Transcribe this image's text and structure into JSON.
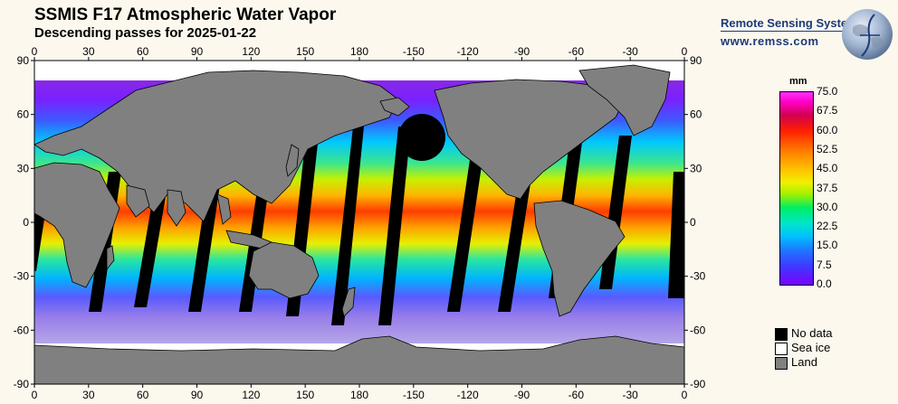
{
  "header": {
    "title": "SSMIS F17 Atmospheric Water Vapor",
    "subtitle": "Descending passes for 2025-01-22"
  },
  "brand": {
    "name": "Remote Sensing Systems",
    "url": "www.remss.com"
  },
  "map": {
    "x_ticks_top": [
      "0",
      "30",
      "60",
      "90",
      "120",
      "150",
      "180",
      "-150",
      "-120",
      "-90",
      "-60",
      "-30",
      "0"
    ],
    "x_ticks_bottom": [
      "0",
      "30",
      "60",
      "90",
      "120",
      "150",
      "180",
      "-150",
      "-120",
      "-90",
      "-60",
      "-30",
      "0"
    ],
    "y_ticks_left": [
      "90",
      "60",
      "30",
      "0",
      "-30",
      "-60",
      "-90"
    ],
    "y_ticks_right": [
      "90",
      "60",
      "30",
      "0",
      "-30",
      "-60",
      "-90"
    ],
    "colors": {
      "land": "#808080",
      "no_data": "#000000",
      "sea_ice": "#ffffff"
    }
  },
  "colorbar": {
    "unit": "mm",
    "labels": [
      "75.0",
      "67.5",
      "60.0",
      "52.5",
      "45.0",
      "37.5",
      "30.0",
      "22.5",
      "15.0",
      "7.5",
      "0.0"
    ],
    "range": [
      0,
      75
    ]
  },
  "legend": {
    "items": [
      {
        "label": "No data",
        "color": "#000000"
      },
      {
        "label": "Sea ice",
        "color": "#ffffff"
      },
      {
        "label": "Land",
        "color": "#808080"
      }
    ]
  }
}
